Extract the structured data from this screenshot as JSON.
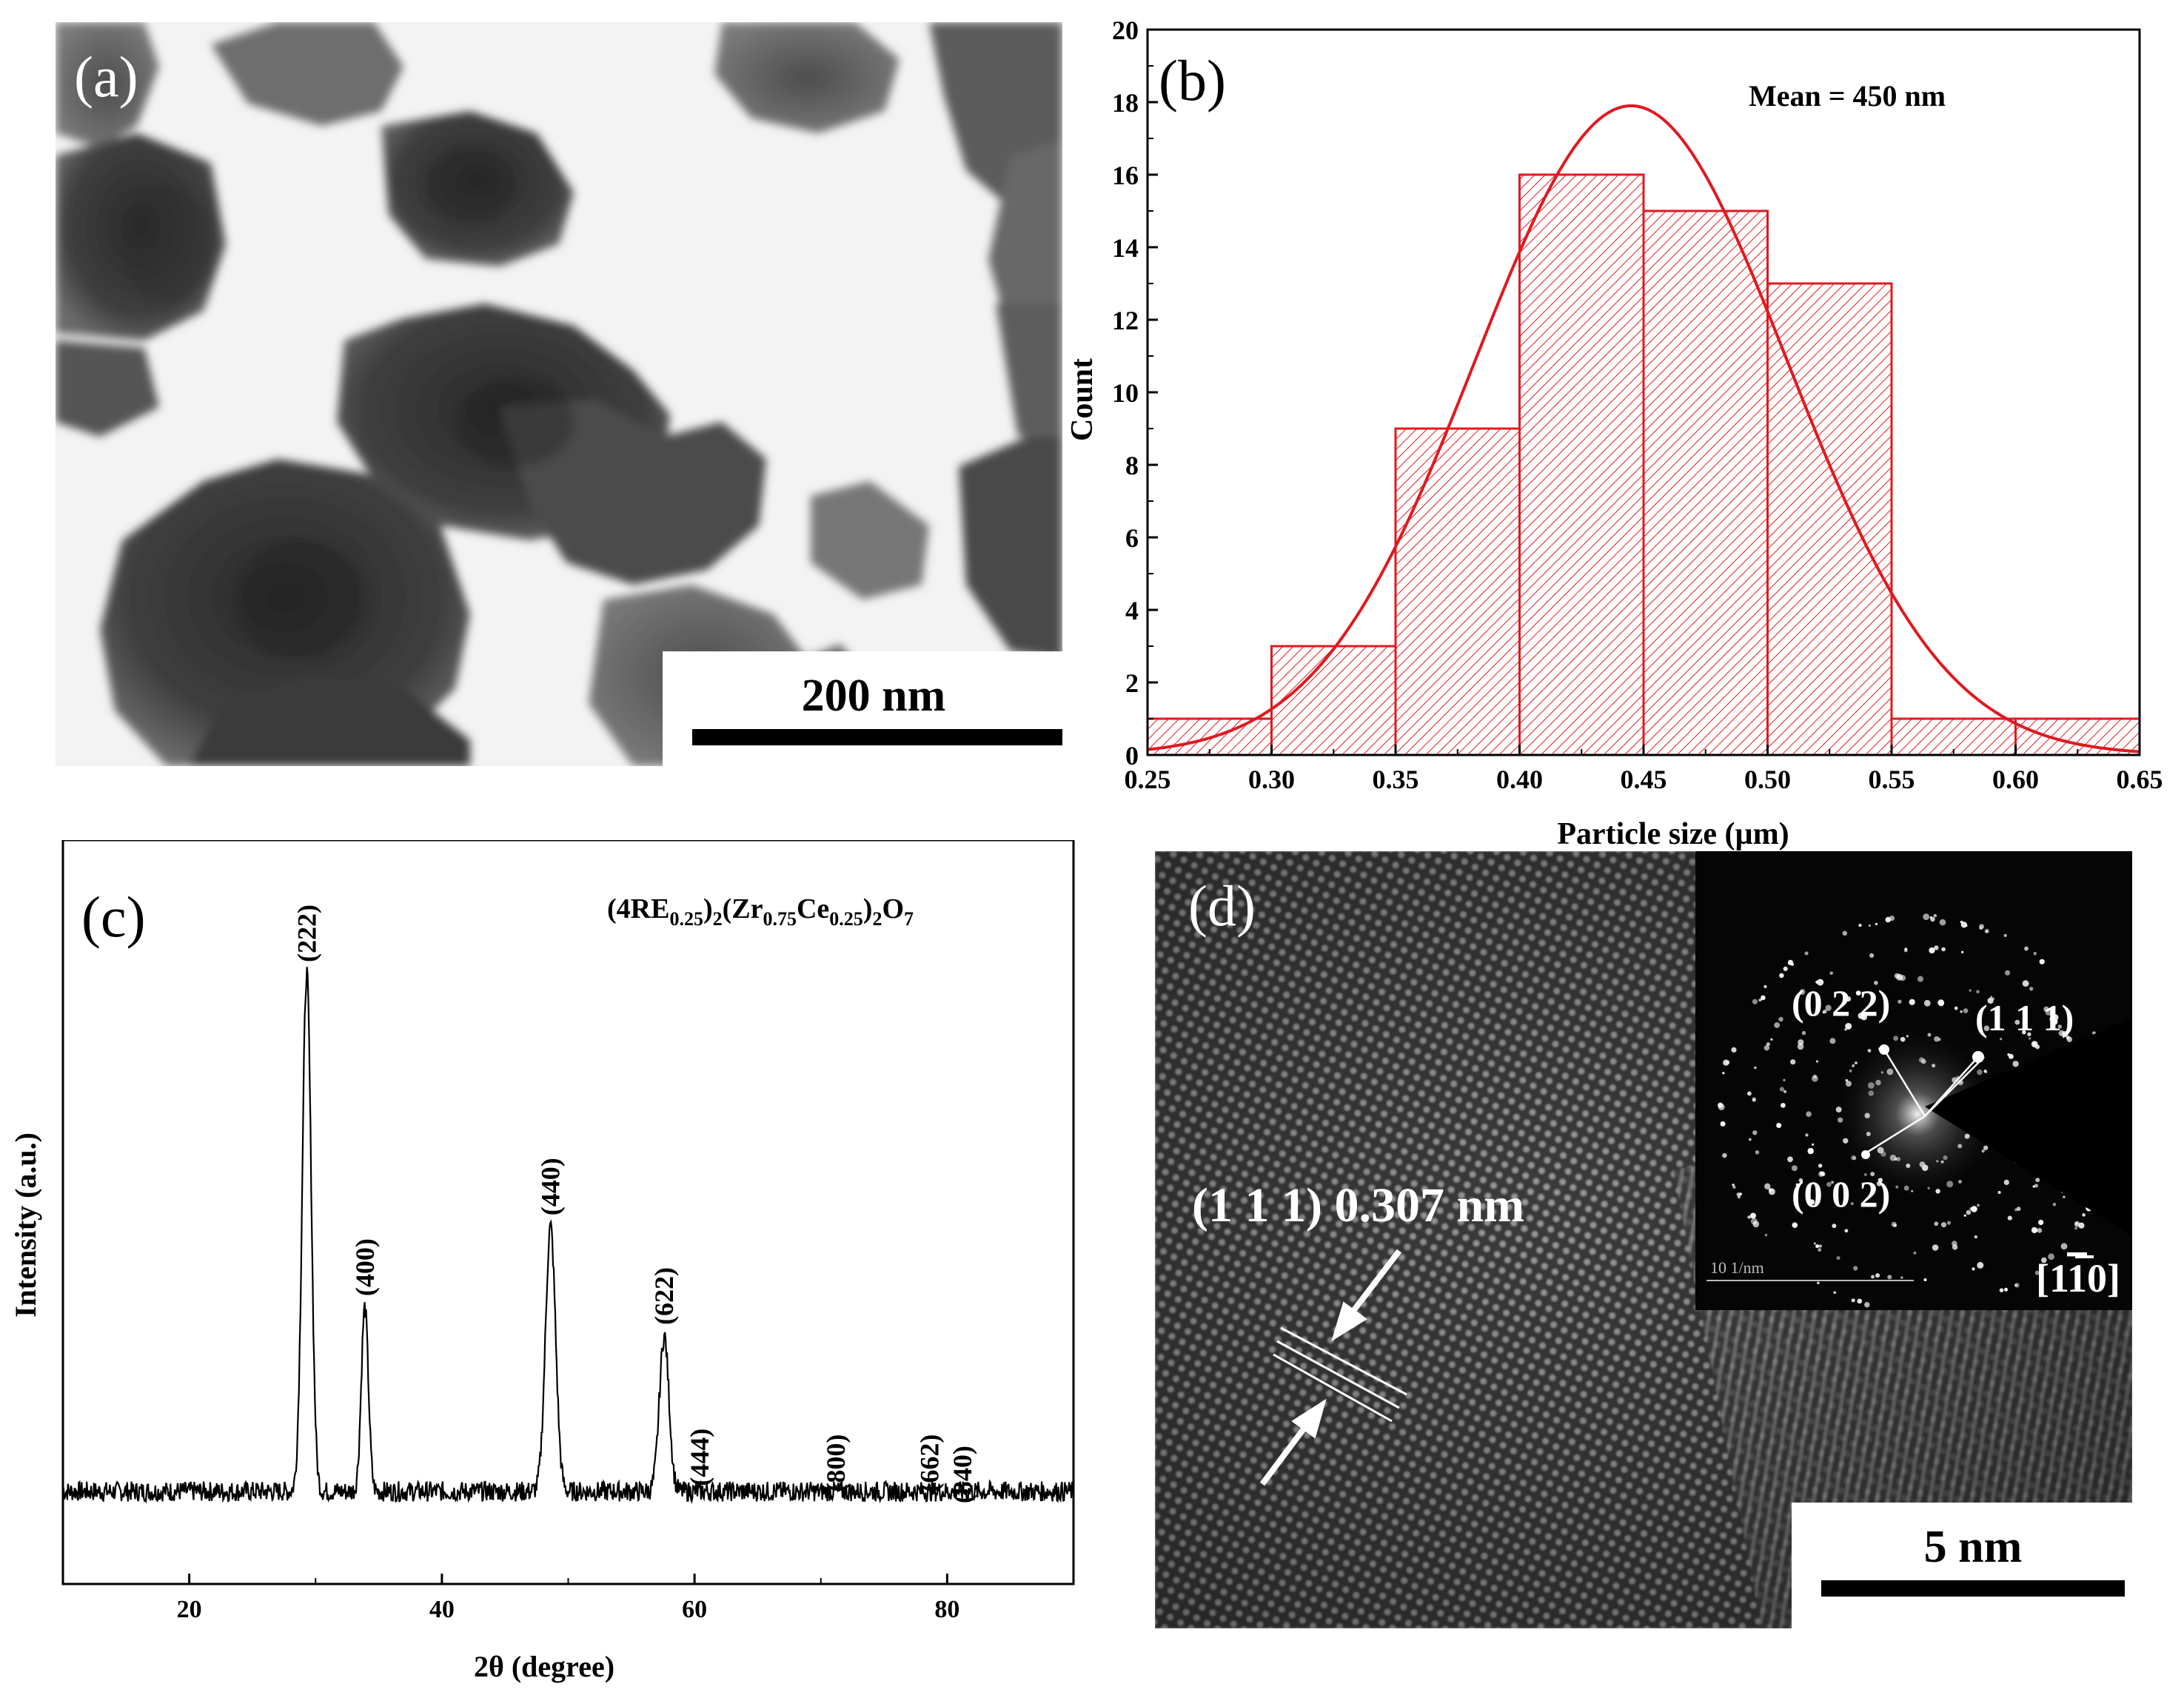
{
  "panels": {
    "a": {
      "letter": "(a)",
      "scale_bar": "200 nm",
      "scale_bar_color": "#000000"
    },
    "b": {
      "letter": "(b)",
      "annotation": "Mean = 450 nm",
      "accent_color": "#e0191f"
    },
    "c": {
      "letter": "(c)",
      "formula": {
        "prefix": "(4RE",
        "sub1": "0.25",
        "mid1": ")",
        "sub2": "2",
        "mid2": "(Zr",
        "sub3": "0.75",
        "mid3": "Ce",
        "sub4": "0.25",
        "mid4": ")",
        "sub5": "2",
        "mid5": "O",
        "sub6": "7"
      }
    },
    "d": {
      "letter": "(d)",
      "lattice_label": "(1 1 1) 0.307 nm",
      "scale_bar": "5 nm",
      "inset": {
        "spot_labels": [
          "(0 2 2)",
          "(1 1 1)",
          "(0 0 2)"
        ],
        "zone_axis_prefix": "[1",
        "zone_axis_bar": "1",
        "zone_axis_suffix": "0]",
        "inset_scale": "10 1/nm"
      }
    }
  },
  "chart_data": [
    {
      "panel": "b",
      "type": "bar",
      "xlabel": "Particle size (µm)",
      "ylabel": "Count",
      "xlim": [
        0.25,
        0.65
      ],
      "ylim": [
        0,
        20
      ],
      "xticks": [
        "0.25",
        "0.30",
        "0.35",
        "0.40",
        "0.45",
        "0.50",
        "0.55",
        "0.60",
        "0.65"
      ],
      "yticks": [
        "0",
        "2",
        "4",
        "6",
        "8",
        "10",
        "12",
        "14",
        "16",
        "18",
        "20"
      ],
      "bins": [
        {
          "x0": 0.25,
          "x1": 0.3,
          "count": 1
        },
        {
          "x0": 0.3,
          "x1": 0.35,
          "count": 3
        },
        {
          "x0": 0.35,
          "x1": 0.4,
          "count": 9
        },
        {
          "x0": 0.4,
          "x1": 0.45,
          "count": 16
        },
        {
          "x0": 0.45,
          "x1": 0.5,
          "count": 15
        },
        {
          "x0": 0.5,
          "x1": 0.55,
          "count": 13
        },
        {
          "x0": 0.55,
          "x1": 0.6,
          "count": 1
        },
        {
          "x0": 0.6,
          "x1": 0.65,
          "count": 1
        }
      ],
      "fit_curve": {
        "type": "gaussian",
        "mean": 0.445,
        "sigma": 0.063,
        "peak": 17.9
      },
      "colors": {
        "bars": "#e0191f",
        "curve": "#e0191f"
      }
    },
    {
      "panel": "c",
      "type": "line",
      "xlabel": "2θ (degree)",
      "ylabel": "Intensity (a.u.)",
      "xlim": [
        10,
        90
      ],
      "xticks": [
        "20",
        "40",
        "60",
        "80"
      ],
      "baseline": 0.1,
      "peaks": [
        {
          "label": "(222)",
          "x": 29.3,
          "height": 1.0,
          "width": 0.35
        },
        {
          "label": "(400)",
          "x": 33.9,
          "height": 0.42,
          "width": 0.28
        },
        {
          "label": "(440)",
          "x": 48.6,
          "height": 0.56,
          "width": 0.4
        },
        {
          "label": "(622)",
          "x": 57.6,
          "height": 0.37,
          "width": 0.38
        },
        {
          "label": "(444)",
          "x": 60.4,
          "height": 0.09,
          "width": 0.25
        },
        {
          "label": "(800)",
          "x": 71.2,
          "height": 0.08,
          "width": 0.3
        },
        {
          "label": "(662)",
          "x": 78.6,
          "height": 0.08,
          "width": 0.4
        },
        {
          "label": "(840)",
          "x": 81.2,
          "height": 0.06,
          "width": 0.4
        }
      ],
      "colors": {
        "line": "#000000"
      }
    }
  ]
}
